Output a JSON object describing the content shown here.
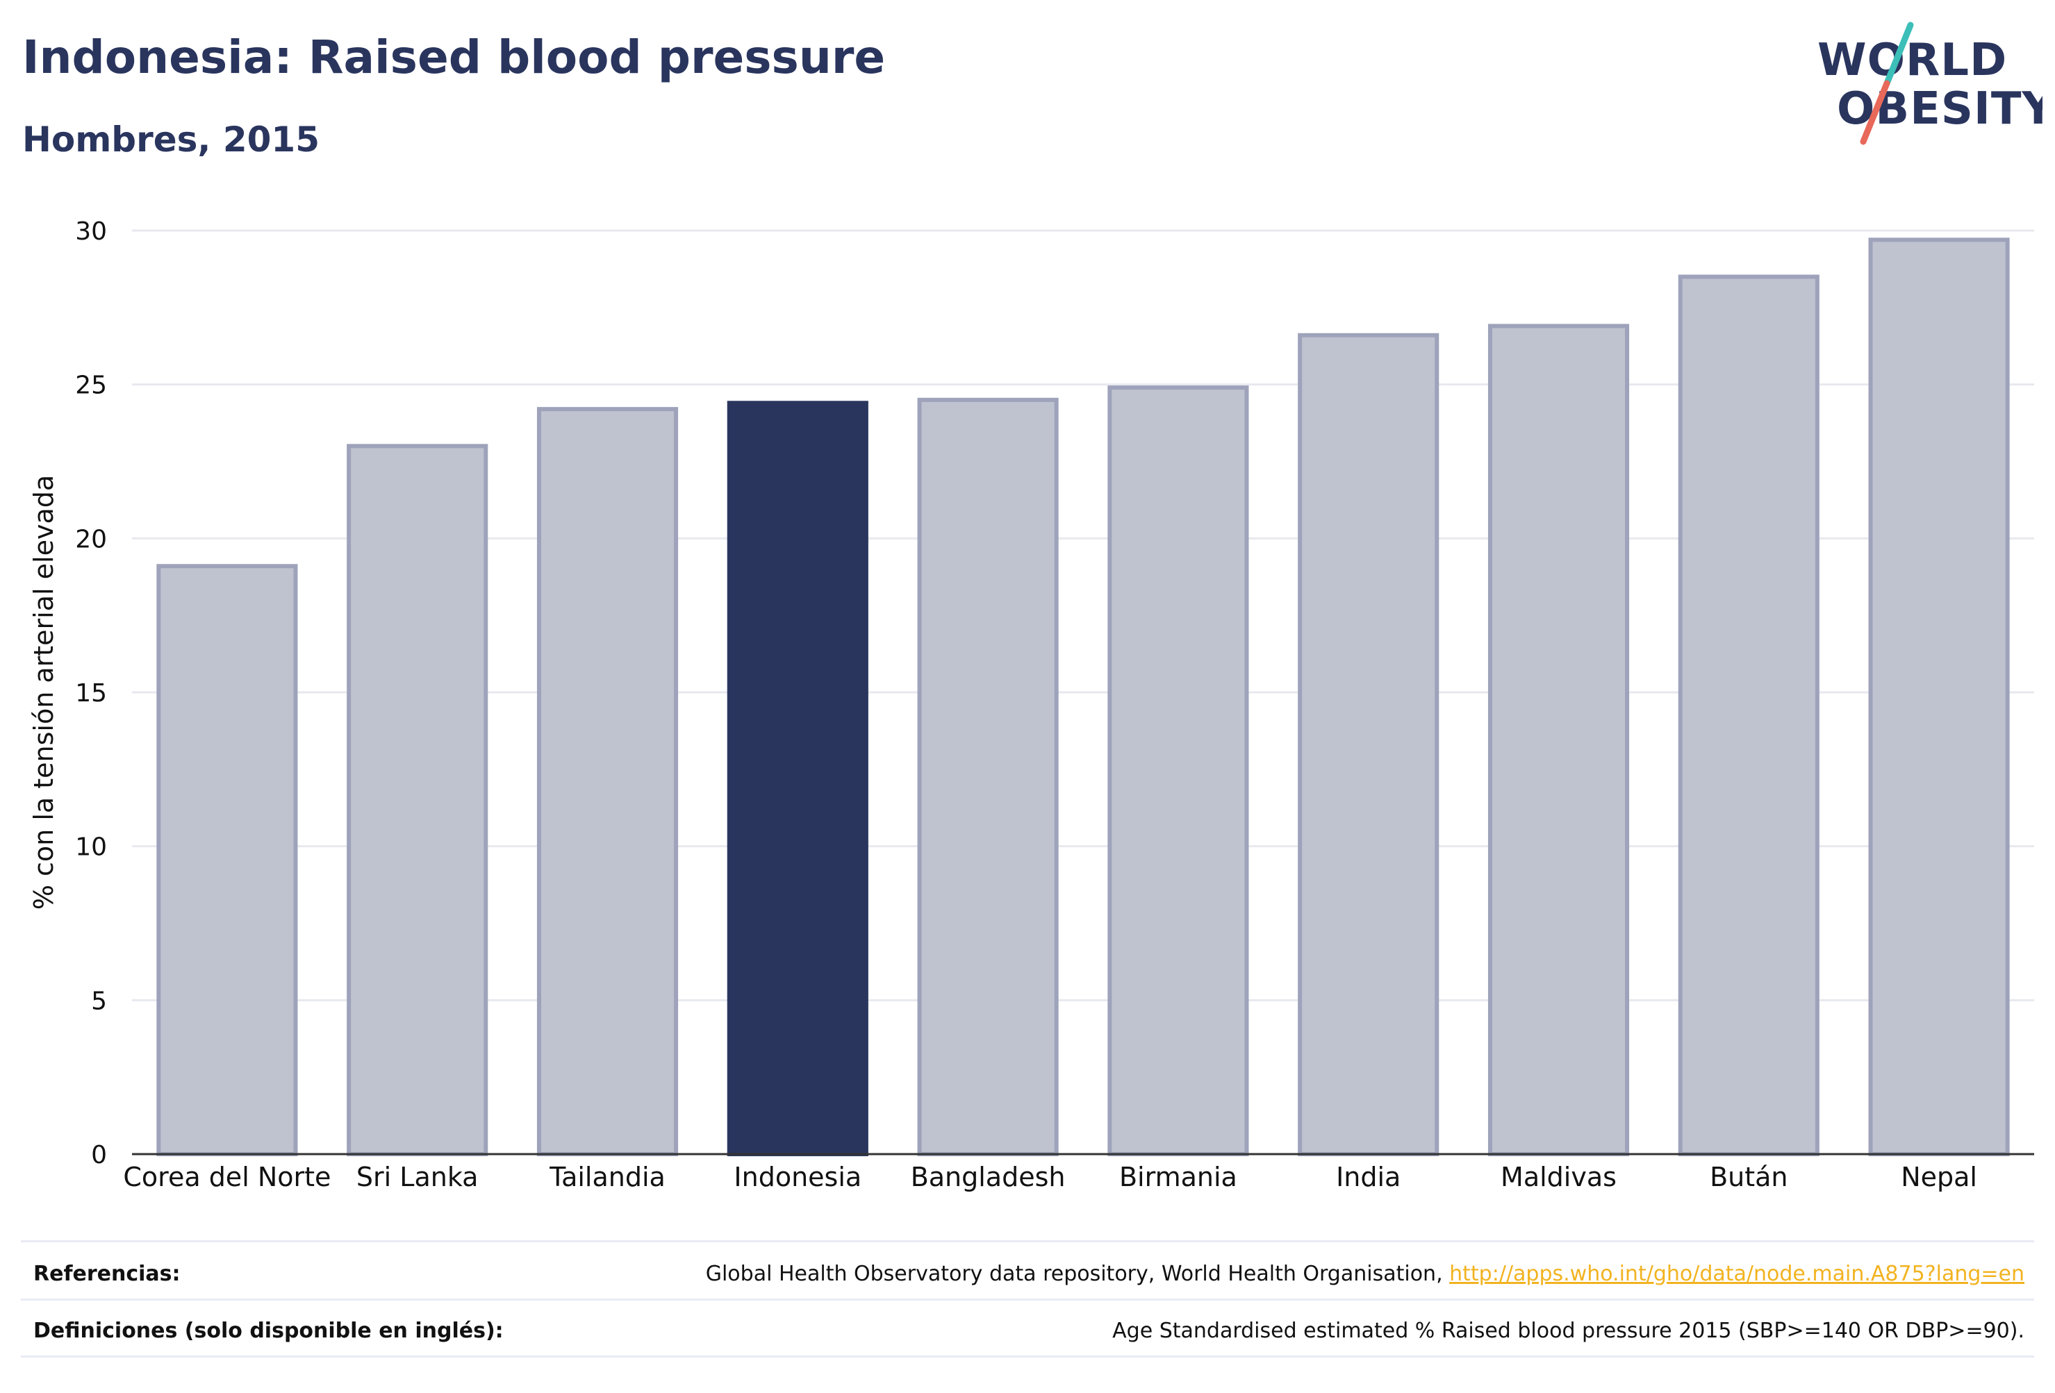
{
  "header": {
    "title": "Indonesia: Raised blood pressure",
    "subtitle": "Hombres, 2015"
  },
  "logo": {
    "line1": "WORLD",
    "line2": "OBESITY",
    "colors": {
      "text": "#2a355e",
      "slash_top": "#3bbfb8",
      "slash_bottom": "#e8695a"
    }
  },
  "colors": {
    "highlight_bar": "#2a355e",
    "other_bar_fill": "#bfc2cf",
    "other_bar_stroke": "#9ea3bb",
    "gridline": "#e8e9ef",
    "axis": "#333333",
    "link": "#f2b321"
  },
  "chart_data": {
    "type": "bar",
    "title": "Indonesia: Raised blood pressure",
    "subtitle": "Hombres, 2015",
    "xlabel": "",
    "ylabel": "% con la tensión arterial elevada",
    "ylim": [
      0,
      30
    ],
    "yticks": [
      0,
      5,
      10,
      15,
      20,
      25,
      30
    ],
    "grid": true,
    "categories": [
      "Corea del Norte",
      "Sri Lanka",
      "Tailandia",
      "Indonesia",
      "Bangladesh",
      "Birmania",
      "India",
      "Maldivas",
      "Bután",
      "Nepal"
    ],
    "values": [
      19.1,
      23.0,
      24.2,
      24.4,
      24.5,
      24.9,
      26.6,
      26.9,
      28.5,
      29.7
    ],
    "highlight": "Indonesia"
  },
  "footer": {
    "references_label": "Referencias:",
    "references_text": "Global Health Observatory data repository, World Health Organisation, ",
    "references_link": "http://apps.who.int/gho/data/node.main.A875?lang=en",
    "definitions_label": "Definiciones (solo disponible en inglés):",
    "definitions_text": "Age Standardised estimated % Raised blood pressure 2015 (SBP>=140 OR DBP>=90)."
  }
}
